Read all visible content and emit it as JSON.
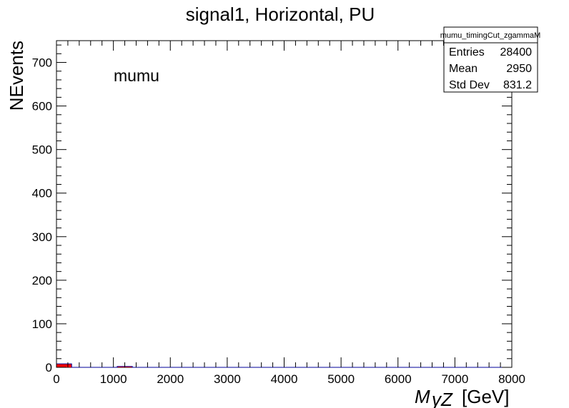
{
  "chart_data": {
    "type": "bar",
    "title": "signal1, Horizontal, PU",
    "ylabel": "NEvents",
    "xlabel": "M_γZ [GeV]",
    "xlabel_main": "M",
    "xlabel_sub": "γZ",
    "xlabel_unit": "[GeV]",
    "annotation": "mumu",
    "xlim": [
      0,
      8000
    ],
    "ylim": [
      0,
      750
    ],
    "x_ticks": [
      0,
      1000,
      2000,
      3000,
      4000,
      5000,
      6000,
      7000,
      8000
    ],
    "y_ticks": [
      0,
      100,
      200,
      300,
      400,
      500,
      600,
      700
    ],
    "bin_width": 266.67,
    "bin_edges_start": 0,
    "values": [
      8,
      0,
      0,
      0,
      2,
      0,
      0,
      0,
      0,
      0,
      0,
      0,
      0,
      0,
      0,
      0,
      0,
      0,
      0,
      0,
      0,
      0,
      0,
      0,
      0,
      0,
      0,
      0,
      0,
      0
    ],
    "fill_color": "#ff0000",
    "line_color": "#000099",
    "stats_box": {
      "title": "mumu_timingCut_zgammaM",
      "rows": [
        {
          "label": "Entries",
          "value": "28400"
        },
        {
          "label": "Mean",
          "value": "2950"
        },
        {
          "label": "Std Dev",
          "value": "831.2"
        }
      ]
    }
  }
}
